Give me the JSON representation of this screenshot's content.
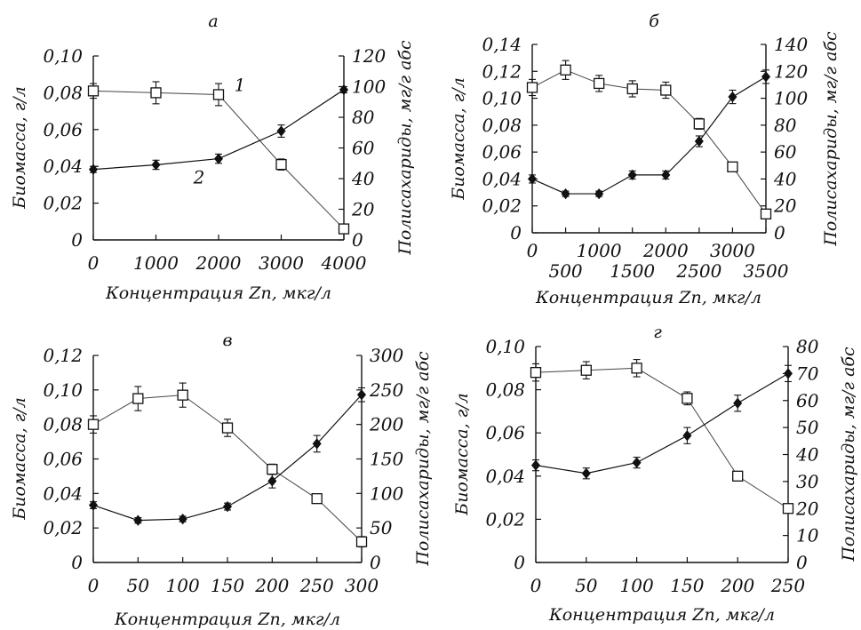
{
  "chart_data": [
    {
      "panel": "а",
      "type": "line",
      "xlabel": "Концентрация Zn, мкг/л",
      "ylabel": "Биомасса, г/л",
      "y2label": "Полисахариды, мг/г абс",
      "xlim": [
        0,
        4000
      ],
      "ylim": [
        0,
        0.1
      ],
      "y2lim": [
        0,
        120
      ],
      "xticks": [
        "0",
        "1000",
        "2000",
        "3000",
        "4000"
      ],
      "yticks": [
        "0",
        "0,02",
        "0,04",
        "0,06",
        "0,08",
        "0,10"
      ],
      "y2ticks": [
        "0",
        "20",
        "40",
        "60",
        "80",
        "100",
        "120"
      ],
      "series": [
        {
          "name": "1",
          "axis": "left",
          "marker": "open-square",
          "x": [
            0,
            1000,
            2000,
            3000,
            4000
          ],
          "values": [
            0.081,
            0.08,
            0.079,
            0.041,
            0.006
          ],
          "err": [
            0.004,
            0.006,
            0.006,
            0.003,
            0.002
          ]
        },
        {
          "name": "2",
          "axis": "right",
          "marker": "filled-diamond",
          "x": [
            0,
            1000,
            2000,
            3000,
            4000
          ],
          "values": [
            46,
            49,
            53,
            71,
            98
          ],
          "err": [
            2,
            3,
            3,
            4,
            2
          ]
        }
      ]
    },
    {
      "panel": "б",
      "type": "line",
      "xlabel": "Концентрация Zn, мкг/л",
      "ylabel": "Биомасса, г/л",
      "y2label": "Полисахариды, мг/г абс",
      "xlim": [
        0,
        3500
      ],
      "ylim": [
        0,
        0.14
      ],
      "y2lim": [
        0,
        140
      ],
      "xticks_top": [
        "0",
        "1000",
        "2000",
        "3000"
      ],
      "xticks_bottom": [
        "500",
        "1500",
        "2500",
        "3500"
      ],
      "yticks": [
        "0",
        "0,02",
        "0,04",
        "0,06",
        "0,08",
        "0,10",
        "0,12",
        "0,14"
      ],
      "y2ticks": [
        "0",
        "20",
        "40",
        "60",
        "80",
        "100",
        "120",
        "140"
      ],
      "series": [
        {
          "name": "",
          "axis": "left",
          "marker": "open-square",
          "x": [
            0,
            500,
            1000,
            1500,
            2000,
            2500,
            3000,
            3500
          ],
          "values": [
            0.108,
            0.121,
            0.111,
            0.107,
            0.106,
            0.081,
            0.049,
            0.014
          ],
          "err": [
            0.006,
            0.007,
            0.006,
            0.006,
            0.006,
            0.004,
            0.003,
            0.003
          ]
        },
        {
          "name": "",
          "axis": "right",
          "marker": "filled-diamond",
          "x": [
            0,
            500,
            1000,
            1500,
            2000,
            2500,
            3000,
            3500
          ],
          "values": [
            40,
            29,
            29,
            43,
            43,
            68,
            101,
            116
          ],
          "err": [
            3,
            2,
            2,
            3,
            3,
            4,
            5,
            5
          ]
        }
      ]
    },
    {
      "panel": "в",
      "type": "line",
      "xlabel": "Концентрация Zn, мкг/л",
      "ylabel": "Биомасса, г/л",
      "y2label": "Полисахариды, мг/г абс",
      "xlim": [
        0,
        300
      ],
      "ylim": [
        0,
        0.12
      ],
      "y2lim": [
        0,
        300
      ],
      "xticks": [
        "0",
        "50",
        "100",
        "150",
        "200",
        "250",
        "300"
      ],
      "yticks": [
        "0",
        "0,02",
        "0,04",
        "0,06",
        "0,08",
        "0,10",
        "0,12"
      ],
      "y2ticks": [
        "0",
        "50",
        "100",
        "150",
        "200",
        "250",
        "300"
      ],
      "series": [
        {
          "name": "",
          "axis": "left",
          "marker": "open-square",
          "x": [
            0,
            50,
            100,
            150,
            200,
            250,
            300
          ],
          "values": [
            0.08,
            0.095,
            0.097,
            0.078,
            0.054,
            0.037,
            0.012
          ],
          "err": [
            0.005,
            0.007,
            0.007,
            0.005,
            0.003,
            0.002,
            0.003
          ]
        },
        {
          "name": "",
          "axis": "right",
          "marker": "filled-diamond",
          "x": [
            0,
            50,
            100,
            150,
            200,
            250,
            300
          ],
          "values": [
            83,
            61,
            63,
            81,
            118,
            172,
            243
          ],
          "err": [
            5,
            4,
            4,
            5,
            10,
            12,
            10
          ]
        }
      ]
    },
    {
      "panel": "г",
      "type": "line",
      "xlabel": "Концентрация Zn, мкг/л",
      "ylabel": "Биомасса, г/л",
      "y2label": "Полисахариды, мг/г абс",
      "xlim": [
        0,
        250
      ],
      "ylim": [
        0,
        0.1
      ],
      "y2lim": [
        0,
        80
      ],
      "xticks": [
        "0",
        "50",
        "100",
        "150",
        "200",
        "250"
      ],
      "yticks": [
        "0",
        "0,02",
        "0,04",
        "0,06",
        "0,08",
        "0,10"
      ],
      "y2ticks": [
        "0",
        "10",
        "20",
        "30",
        "40",
        "50",
        "60",
        "70",
        "80"
      ],
      "series": [
        {
          "name": "",
          "axis": "left",
          "marker": "open-square",
          "x": [
            0,
            50,
            100,
            150,
            200,
            250
          ],
          "values": [
            0.088,
            0.089,
            0.09,
            0.076,
            0.04,
            0.025
          ],
          "err": [
            0.004,
            0.004,
            0.004,
            0.003,
            0.002,
            0.002
          ]
        },
        {
          "name": "",
          "axis": "right",
          "marker": "filled-diamond",
          "x": [
            0,
            50,
            100,
            150,
            200,
            250
          ],
          "values": [
            36,
            33,
            37,
            47,
            59,
            70
          ],
          "err": [
            2,
            2,
            2,
            3,
            3,
            3
          ]
        }
      ]
    }
  ]
}
